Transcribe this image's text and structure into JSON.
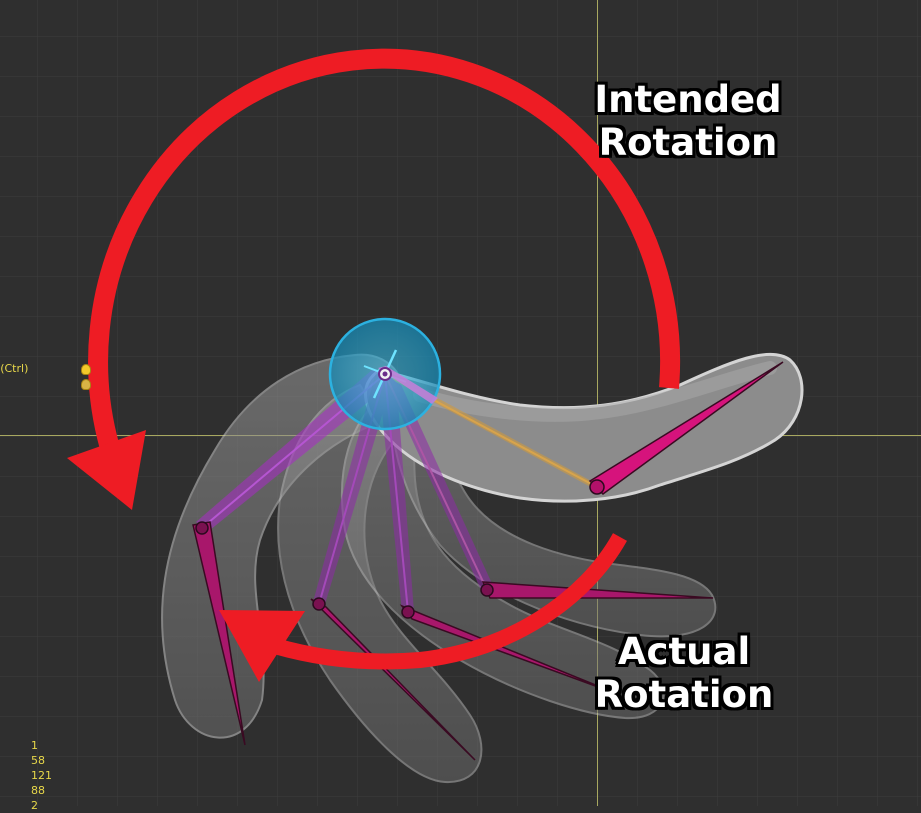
{
  "hud": {
    "mode_text": "m (Ctrl)",
    "stats": [
      "1",
      "58",
      "121",
      "88",
      "2"
    ]
  },
  "labels": {
    "intended": [
      "Intended",
      "Rotation"
    ],
    "actual": [
      "Actual",
      "Rotation"
    ]
  },
  "icons": {
    "bulb": "lightbulb-icon",
    "pivot": "bone-pivot-handle"
  },
  "colors": {
    "background": "#2f2f2f",
    "grid": "#3b3b3b",
    "axis": "#b9b968",
    "arrow": "#ee1c24",
    "bone": "#b0166f",
    "pivot": "#2fb8e8",
    "text_hud": "#e8d84a"
  }
}
